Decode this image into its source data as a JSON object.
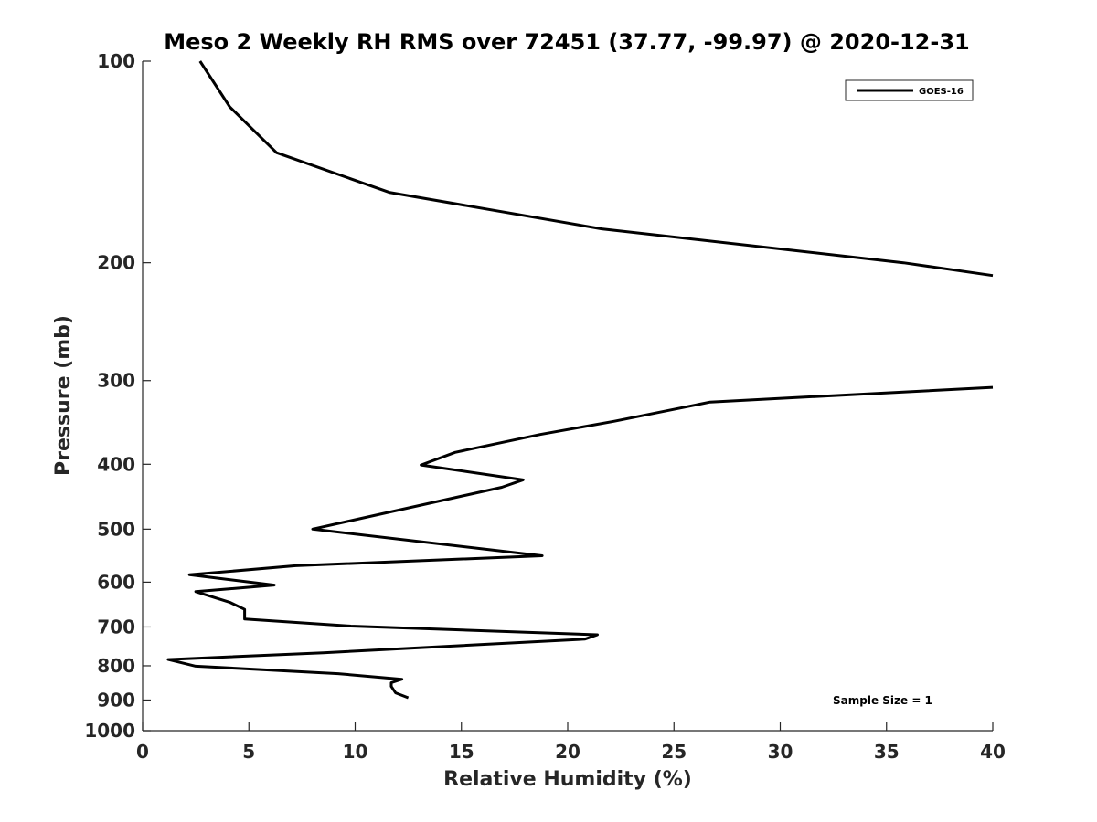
{
  "chart_data": {
    "type": "line",
    "title": "Meso 2 Weekly RH RMS over 72451 (37.77, -99.97) @ 2020-12-31",
    "xlabel": "Relative Humidity (%)",
    "ylabel": "Pressure (mb)",
    "xlim": [
      0,
      40
    ],
    "ylim": [
      100,
      1000
    ],
    "yscale": "log",
    "y_reversed": true,
    "grid": false,
    "legend_position": "top-right",
    "xticks": [
      0,
      5,
      10,
      15,
      20,
      25,
      30,
      35,
      40
    ],
    "yticks": [
      100,
      200,
      300,
      400,
      500,
      600,
      700,
      800,
      900,
      1000
    ],
    "annotation": "Sample Size = 1",
    "series": [
      {
        "name": "GOES-16",
        "color": "#000000",
        "segments": [
          [
            [
              2.7,
              100
            ],
            [
              4.1,
              117
            ],
            [
              6.3,
              137
            ],
            [
              11.6,
              157
            ],
            [
              21.6,
              178
            ],
            [
              35.8,
              200
            ],
            [
              40,
              209
            ]
          ],
          [
            [
              40,
              307
            ],
            [
              26.7,
              323
            ],
            [
              22.2,
              345
            ],
            [
              18.7,
              361
            ],
            [
              14.7,
              384
            ],
            [
              13.1,
              401
            ],
            [
              17.9,
              422
            ],
            [
              16.9,
              433
            ],
            [
              8.0,
              500
            ],
            [
              18.8,
              548
            ],
            [
              7.2,
              567
            ],
            [
              2.2,
              585
            ],
            [
              6.2,
              606
            ],
            [
              2.5,
              620
            ],
            [
              4.1,
              643
            ],
            [
              4.8,
              659
            ],
            [
              4.8,
              681
            ],
            [
              9.8,
              698
            ],
            [
              21.4,
              719
            ],
            [
              20.8,
              730
            ],
            [
              8.5,
              765
            ],
            [
              1.2,
              783
            ],
            [
              2.5,
              801
            ],
            [
              9.2,
              822
            ],
            [
              12.2,
              838
            ],
            [
              11.7,
              848
            ],
            [
              11.7,
              859
            ],
            [
              11.9,
              878
            ],
            [
              12.5,
              893
            ]
          ]
        ]
      }
    ]
  }
}
